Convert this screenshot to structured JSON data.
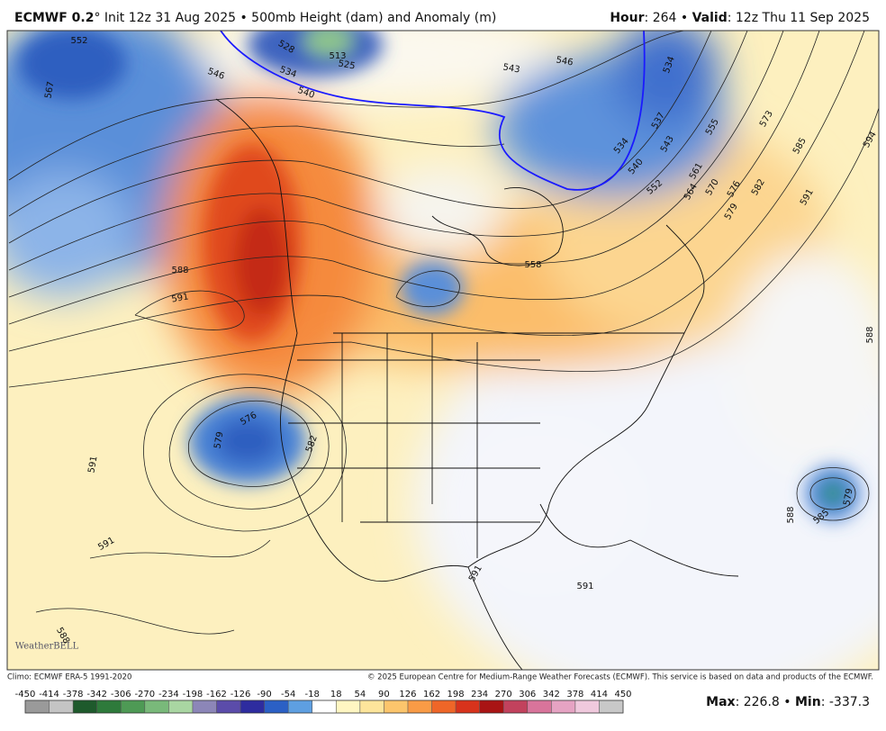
{
  "header": {
    "left": [
      {
        "text": "ECMWF 0.2",
        "bold": true
      },
      {
        "text": "° Init 12z 31 Aug 2025 • 500mb Height (dam) and Anomaly (m)",
        "bold": false
      }
    ],
    "right": [
      {
        "text": "Hour",
        "bold": true
      },
      {
        "text": ": 264 • ",
        "bold": false
      },
      {
        "text": "Valid",
        "bold": true
      },
      {
        "text": ": 12z Thu 11 Sep 2025",
        "bold": false
      }
    ]
  },
  "map": {
    "watermark": "WeatherBELL",
    "contour_labels": [
      "567",
      "546",
      "552",
      "528",
      "534",
      "540",
      "513",
      "525",
      "543",
      "546",
      "534",
      "537",
      "534",
      "540",
      "543",
      "552",
      "555",
      "561",
      "564",
      "570",
      "576",
      "579",
      "582",
      "573",
      "585",
      "591",
      "594",
      "588",
      "591",
      "558",
      "576",
      "579",
      "582",
      "591",
      "591",
      "591",
      "588",
      "588",
      "591",
      "585",
      "579",
      "588"
    ]
  },
  "footer": {
    "climo": "Climo: ECMWF ERA-5 1991-2020",
    "copyright": "© 2025 European Centre for Medium-Range Weather Forecasts (ECMWF). This service is based on data and products of the ECMWF."
  },
  "colorbar": {
    "ticks": [
      -450,
      -414,
      -378,
      -342,
      -306,
      -270,
      -234,
      -198,
      -162,
      -126,
      -90,
      -54,
      -18,
      18,
      54,
      90,
      126,
      162,
      198,
      234,
      270,
      306,
      342,
      378,
      414,
      450
    ],
    "colors": [
      "#9a9a9a",
      "#c4c4c4",
      "#1e5a2c",
      "#2e7a3b",
      "#4e9a55",
      "#79b97a",
      "#a9d6a2",
      "#8c86b8",
      "#5b4caa",
      "#2e2c9f",
      "#2b60c5",
      "#5e9fe1",
      "#ffffff",
      "#fff6c2",
      "#fde59b",
      "#fcc56c",
      "#f99b46",
      "#ef6628",
      "#d8331c",
      "#a91414",
      "#c2425d",
      "#d9749b",
      "#e6a3c3",
      "#f0c9dd",
      "#c8c8c8"
    ]
  },
  "stats": [
    {
      "text": "Max",
      "bold": true
    },
    {
      "text": ": 226.8 • ",
      "bold": false
    },
    {
      "text": "Min",
      "bold": true
    },
    {
      "text": ": -337.3",
      "bold": false
    }
  ]
}
